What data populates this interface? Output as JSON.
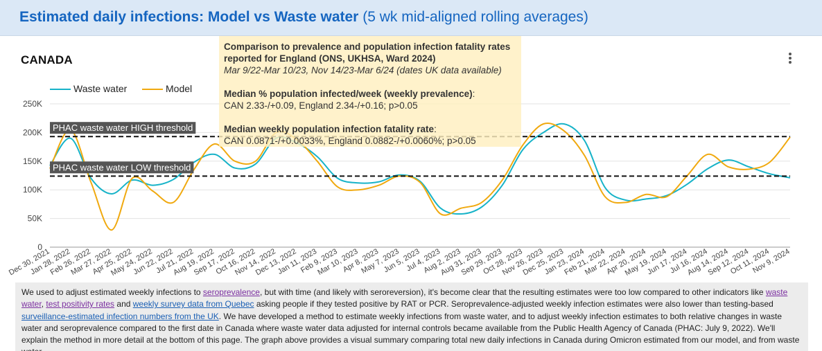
{
  "header": {
    "title_bold": "Estimated daily infections: Model vs Waste water",
    "title_rest": "(5 wk mid-aligned rolling averages)"
  },
  "chart": {
    "region_title": "CANADA",
    "menu_icon": "more-vert-icon"
  },
  "legend": {
    "waste_water": "Waste water",
    "model": "Model"
  },
  "tooltip": {
    "heading": "Comparison to prevalence and population infection fatality rates reported for England (ONS, UKHSA, Ward 2024)",
    "dates": "Mar 9/22-Mar 10/23, Nov 14/23-Mar 6/24 (dates UK data available)",
    "prevalence_label": "Median % population infected/week (weekly prevalence)",
    "prevalence_colon": ":",
    "prevalence_value": "CAN 2.33-/+0.09, England 2.34-/+0.16; p>0.05",
    "ifr_label": "Median weekly population infection fatality rate",
    "ifr_colon": ":",
    "ifr_value": "CAN 0.0871-/+0.0033%, England 0.0882-/+0.0060%; p>0.05"
  },
  "description": {
    "t1": "We used to adjust estimated weekly infections to ",
    "l1": "seroprevalence",
    "t2": ", but with time (and likely with seroreversion), it's become clear that the resulting estimates were too low compared to other indicators like ",
    "l2": "waste water",
    "t3": ", ",
    "l3": "test positivity rates",
    "t4": " and ",
    "l4": "weekly survey data from Quebec",
    "t5": " asking people if they tested positive by RAT or PCR. Seroprevalence-adjusted weekly infection estimates were also lower than testing-based ",
    "l5": "surveillance-estimated infection numbers from the UK",
    "t6": ". We have developed a method to estimate weekly infections from waste water, and to adjust weekly infection estimates to both relative changes in waste water and seroprevalence compared to the first date in Canada where waste water data adjusted for internal controls became available from the Public Health Agency of Canada (PHAC: July 9, 2022). We'll explain the method in more detail at the bottom of this page. The graph above provides a visual summary comparing total new daily infections in Canada during Omicron estimated from our model, and from waste water."
  },
  "chart_data": {
    "type": "line",
    "title": "CANADA",
    "xlabel": "",
    "ylabel": "",
    "ylim": [
      0,
      250000
    ],
    "yticks": [
      0,
      50000,
      100000,
      150000,
      200000,
      250000
    ],
    "ytick_labels": [
      "0",
      "50K",
      "100K",
      "150K",
      "200K",
      "250K"
    ],
    "grid": true,
    "legend_position": "top-left",
    "x": [
      "Dec 30, 2021",
      "Jan 28, 2022",
      "Feb 26, 2022",
      "Mar 27, 2022",
      "Apr 25, 2022",
      "May 24, 2022",
      "Jun 22, 2022",
      "Jul 21, 2022",
      "Aug 19, 2022",
      "Sep 17, 2022",
      "Oct 16, 2022",
      "Nov 14, 2022",
      "Dec 13, 2022",
      "Jan 11, 2023",
      "Feb 9, 2023",
      "Mar 10, 2023",
      "Apr 8, 2023",
      "May 7, 2023",
      "Jun 5, 2023",
      "Jul 4, 2023",
      "Aug 2, 2023",
      "Aug 31, 2023",
      "Sep 29, 2023",
      "Oct 28, 2023",
      "Nov 26, 2023",
      "Dec 25, 2023",
      "Jan 23, 2024",
      "Feb 21, 2024",
      "Mar 22, 2024",
      "Apr 20, 2024",
      "May 19, 2024",
      "Jun 17, 2024",
      "Jul 16, 2024",
      "Aug 14, 2024",
      "Sep 12, 2024",
      "Oct 11, 2024",
      "Nov 9, 2024"
    ],
    "series": [
      {
        "name": "Waste water",
        "color": "#17b3c8",
        "values": [
          142000,
          190000,
          120000,
          93000,
          117000,
          108000,
          118000,
          148000,
          162000,
          138000,
          145000,
          190000,
          182000,
          158000,
          120000,
          112000,
          114000,
          126000,
          115000,
          68000,
          58000,
          70000,
          108000,
          170000,
          200000,
          215000,
          186000,
          104000,
          82000,
          84000,
          90000,
          110000,
          137000,
          152000,
          140000,
          128000,
          121000
        ]
      },
      {
        "name": "Model",
        "color": "#f0a90f",
        "values": [
          137000,
          205000,
          113000,
          30000,
          120000,
          98000,
          78000,
          135000,
          180000,
          150000,
          150000,
          200000,
          188000,
          150000,
          105000,
          100000,
          108000,
          124000,
          113000,
          58000,
          68000,
          78000,
          117000,
          178000,
          215000,
          203000,
          160000,
          88000,
          78000,
          92000,
          88000,
          125000,
          162000,
          140000,
          136000,
          148000,
          192000
        ]
      }
    ],
    "annotations": [
      {
        "label": "PHAC waste water HIGH threshold",
        "y": 193000
      },
      {
        "label": "PHAC waste water LOW threshold",
        "y": 124000
      }
    ]
  }
}
